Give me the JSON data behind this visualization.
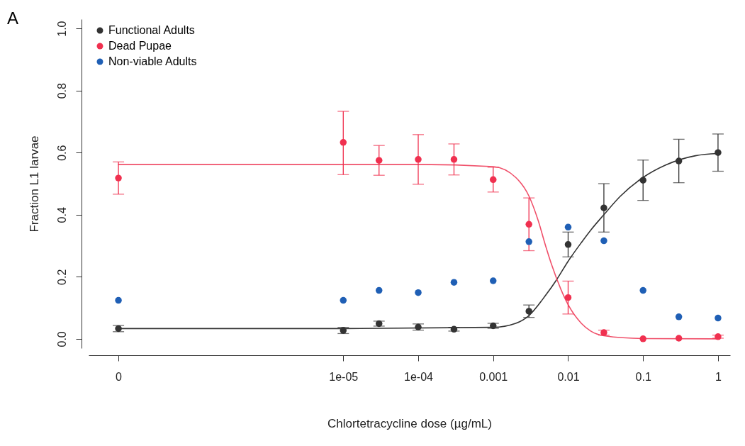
{
  "chart_data": {
    "type": "scatter",
    "xlabel": "Chlortetracycline dose (µg/mL)",
    "ylabel": "Fraction L1 larvae",
    "annotations": [
      "A"
    ],
    "log": "x",
    "grid": false,
    "legend": "top left",
    "marker": "circle",
    "xlim": [
      4e-09,
      1.45
    ],
    "ylim": [
      -0.03,
      1.03
    ],
    "xticks": [
      {
        "value": 1e-08,
        "label": "0"
      },
      {
        "value": 1e-05,
        "label": "1e-05"
      },
      {
        "value": 0.0001,
        "label": "1e-04"
      },
      {
        "value": 0.001,
        "label": "0.001"
      },
      {
        "value": 0.01,
        "label": "0.01"
      },
      {
        "value": 0.1,
        "label": "0.1"
      },
      {
        "value": 1,
        "label": "1"
      }
    ],
    "yticks": [
      {
        "value": 0,
        "label": "0.0"
      },
      0.2,
      0.4,
      0.6,
      0.8,
      {
        "value": 1,
        "label": "1.0"
      }
    ],
    "x": [
      1e-08,
      1e-05,
      3e-05,
      0.0001,
      0.0003,
      0.001,
      0.003,
      0.01,
      0.03,
      0.1,
      0.3,
      1
    ],
    "series": [
      {
        "type": "line",
        "marker": "none",
        "color": "#333333",
        "x": [
          1e-08,
          1e-05,
          0.001,
          0.002,
          0.003,
          0.005,
          0.007,
          0.01,
          0.015,
          0.02,
          0.03,
          0.05,
          0.1,
          0.2,
          0.5,
          1
        ],
        "values": [
          0.033,
          0.033,
          0.037,
          0.05,
          0.075,
          0.14,
          0.19,
          0.25,
          0.31,
          0.35,
          0.4,
          0.46,
          0.52,
          0.56,
          0.59,
          0.597
        ]
      },
      {
        "type": "line",
        "marker": "none",
        "color": "#f0506a",
        "x": [
          1e-08,
          0.0001,
          0.001,
          0.002,
          0.003,
          0.004,
          0.005,
          0.006,
          0.008,
          0.01,
          0.015,
          0.02,
          0.03,
          0.1,
          1
        ],
        "values": [
          0.562,
          0.562,
          0.555,
          0.52,
          0.46,
          0.38,
          0.3,
          0.24,
          0.16,
          0.11,
          0.05,
          0.025,
          0.01,
          0.001,
          0
        ]
      },
      {
        "name": "Functional Adults",
        "color": "#333333",
        "values": [
          0.033,
          0.027,
          0.049,
          0.038,
          0.031,
          0.042,
          0.089,
          0.304,
          0.422,
          0.511,
          0.573,
          0.6
        ],
        "errors": [
          0.01,
          0.01,
          0.008,
          0.01,
          0.006,
          0.008,
          0.02,
          0.04,
          0.078,
          0.065,
          0.07,
          0.06
        ]
      },
      {
        "name": "Dead Pupae",
        "color": "#f0304f",
        "values": [
          0.518,
          0.633,
          0.575,
          0.578,
          0.578,
          0.513,
          0.369,
          0.133,
          0.02,
          0,
          0.002,
          0.007
        ],
        "errors": [
          0.052,
          [
            0.529,
            0.733
          ],
          0.048,
          0.08,
          0.05,
          0.04,
          0.085,
          0.053,
          0.008,
          null,
          null,
          0.005
        ]
      },
      {
        "name": "Non-viable Adults",
        "color": "#1f5fb5",
        "values": [
          0.124,
          0.124,
          0.156,
          0.149,
          0.182,
          0.187,
          0.313,
          0.36,
          0.316,
          0.156,
          0.071,
          0.067
        ]
      }
    ]
  }
}
